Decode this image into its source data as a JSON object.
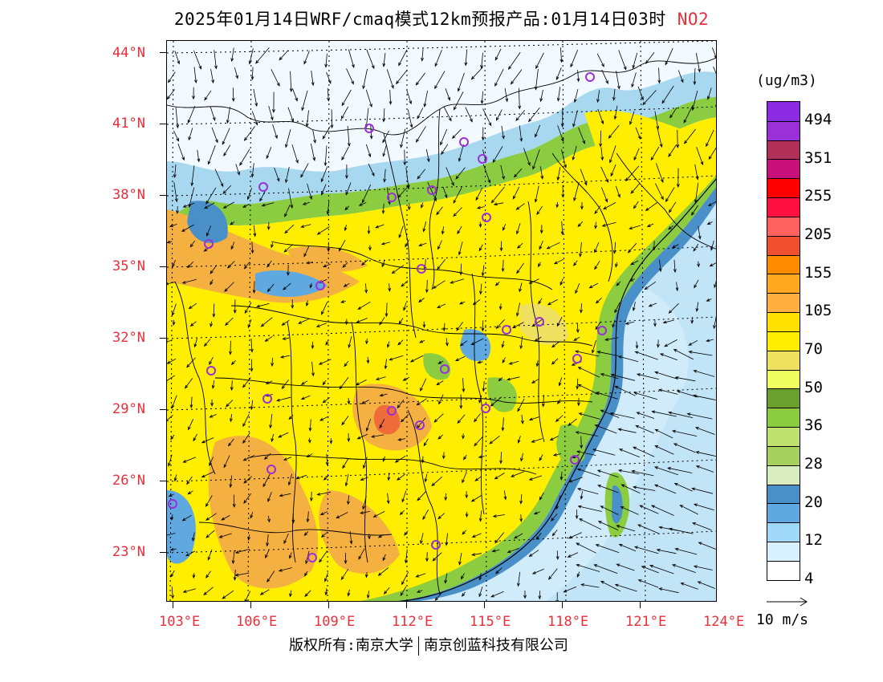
{
  "title": {
    "text": "2025年01月14日WRF/cmaq模式12km预报产品:01月14日03时",
    "species": "NO2"
  },
  "lat_labels": [
    "44°N",
    "41°N",
    "38°N",
    "35°N",
    "32°N",
    "29°N",
    "26°N",
    "23°N"
  ],
  "lon_labels": [
    "103°E",
    "106°E",
    "109°E",
    "112°E",
    "115°E",
    "118°E",
    "121°E",
    "124°E"
  ],
  "colorbar": {
    "unit": "(ug/m3)",
    "colors": [
      "#8a2be2",
      "#9b30d8",
      "#b0305a",
      "#c8107a",
      "#ff0000",
      "#ff1040",
      "#ff6060",
      "#f05030",
      "#ff8c00",
      "#ffa820",
      "#ffb040",
      "#ffe000",
      "#ffee00",
      "#f0e060",
      "#f0ff60",
      "#6aa030",
      "#8ccc40",
      "#c0e070",
      "#a8d060",
      "#d8ecc0",
      "#4a90c8",
      "#60a8e0",
      "#a0d8f8",
      "#d8f0ff",
      "#ffffff"
    ],
    "labels": [
      "494",
      "351",
      "255",
      "205",
      "155",
      "105",
      "70",
      "50",
      "36",
      "28",
      "20",
      "12",
      "4"
    ]
  },
  "wind_reference": "10 m/s",
  "footer": {
    "left": "版权所有:南京大学",
    "right": "南京创蓝科技有限公司"
  },
  "palette": {
    "land_base": "#ffee00",
    "land_orange": "#f5b042",
    "land_dark_orange": "#ef8c3a",
    "green": "#8ccc40",
    "blue": "#4a90c8",
    "light_blue": "#a8d8f0",
    "sea": "#d0ecfa",
    "station_marker": "#9b30d8"
  }
}
